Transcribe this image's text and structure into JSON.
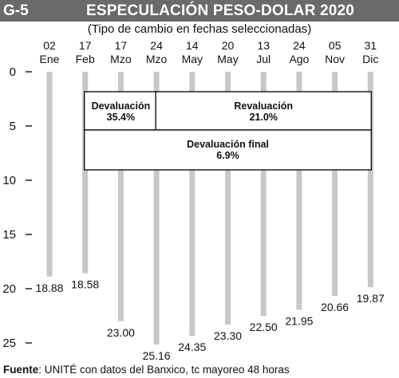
{
  "header": {
    "code": "G-5",
    "title": "ESPECULACIÓN PESO-DOLAR 2020",
    "subtitle": "(Tipo de cambio en fechas seleccionadas)"
  },
  "footer": {
    "source_label": "Fuente",
    "source_text": ": UNITÉ con datos del Banxico, tc mayoreo 48 horas"
  },
  "colors": {
    "bar": "#c8c8c8",
    "title_bar": "#6a6a6a",
    "text": "#111111",
    "box_border": "#000000"
  },
  "chart_data": {
    "type": "bar",
    "orientation": "vertical-inverted",
    "categories": [
      {
        "day": "02",
        "month": "Ene"
      },
      {
        "day": "17",
        "month": "Feb"
      },
      {
        "day": "17",
        "month": "Mzo"
      },
      {
        "day": "24",
        "month": "Mzo"
      },
      {
        "day": "14",
        "month": "May"
      },
      {
        "day": "20",
        "month": "May"
      },
      {
        "day": "13",
        "month": "Jul"
      },
      {
        "day": "24",
        "month": "Ago"
      },
      {
        "day": "05",
        "month": "Nov"
      },
      {
        "day": "31",
        "month": "Dic"
      }
    ],
    "values": [
      18.88,
      18.58,
      23.0,
      25.16,
      24.35,
      23.3,
      22.5,
      21.95,
      20.66,
      19.87
    ],
    "value_labels": [
      "18.88",
      "18.58",
      "23.00",
      "25.16",
      "24.35",
      "23.30",
      "22.50",
      "21.95",
      "20.66",
      "19.87"
    ],
    "ylim": [
      0,
      25
    ],
    "y_ticks": [
      0,
      5,
      10,
      15,
      20,
      25
    ],
    "y_tick_labels": [
      "0",
      "5",
      "10",
      "15",
      "20",
      "25"
    ],
    "annotations": [
      {
        "line1": "Devaluación",
        "line2": "35.4%",
        "from": 1,
        "to": 3,
        "row": 1
      },
      {
        "line1": "Revaluación",
        "line2": "21.0%",
        "from": 3,
        "to": 9,
        "row": 1
      },
      {
        "line1": "Devaluación final",
        "line2": "6.9%",
        "from": 1,
        "to": 9,
        "row": 2
      }
    ]
  }
}
